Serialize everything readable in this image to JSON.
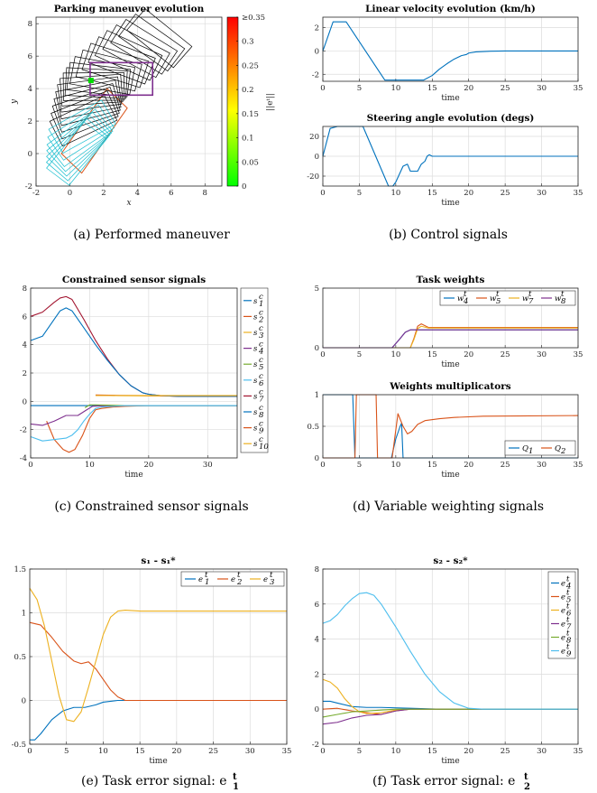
{
  "captions": {
    "a": "(a) Performed maneuver",
    "b": "(b) Control signals",
    "c": "(c) Constrained sensor signals",
    "d": "(d) Variable weighting signals",
    "e": "(e) Task error signal: e",
    "f": "(f) Task error signal: e"
  },
  "caption_marks": {
    "e_sup": "t",
    "e_sub": "1",
    "f_sup": "t",
    "f_sub": "2"
  },
  "colorbar": {
    "label": "||eᵗ||",
    "ticks": [
      "≥0.35",
      "0.3",
      "0.25",
      "0.2",
      "0.15",
      "0.1",
      "0.05",
      "0"
    ],
    "ticks_values": [
      0.35,
      0.3,
      0.25,
      0.2,
      0.15,
      0.1,
      0.05,
      0
    ],
    "colors": [
      "#00ff00",
      "#ffff00",
      "#ff8000",
      "#ff0000"
    ]
  },
  "chart_data": [
    {
      "id": "a",
      "type": "scatter",
      "title": "Parking maneuver evolution",
      "xlabel": "x",
      "ylabel": "y",
      "xlim": [
        -2,
        9
      ],
      "ylim": [
        -2,
        8.4
      ],
      "xticks": [
        -2,
        0,
        2,
        4,
        6,
        8
      ],
      "yticks": [
        -2,
        0,
        2,
        4,
        6,
        8
      ],
      "grid": true,
      "series": [
        {
          "values": [
            [
              5.3,
              7.1
            ],
            [
              3.4,
              6.0
            ],
            [
              1.8,
              4.7
            ],
            [
              1.2,
              3.8
            ],
            [
              0.9,
              2.5
            ],
            [
              0.6,
              1.0
            ],
            [
              0.4,
              0.0
            ]
          ]
        }
      ],
      "target_box": {
        "x": [
          1.2,
          4.9
        ],
        "y": [
          3.6,
          5.6
        ]
      },
      "parking_slot": {
        "corners": [
          [
            -0.5,
            0.0
          ],
          [
            0.7,
            -1.2
          ],
          [
            3.4,
            2.8
          ],
          [
            2.2,
            4.0
          ]
        ]
      }
    },
    {
      "id": "b1",
      "type": "line",
      "title": "Linear velocity evolution (km/h)",
      "xlabel": "time",
      "xlim": [
        0,
        35
      ],
      "ylim": [
        -2.6,
        2.9
      ],
      "xticks": [
        0,
        5,
        10,
        15,
        20,
        25,
        30,
        35
      ],
      "yticks": [
        -2,
        0,
        2
      ],
      "grid": true,
      "series": [
        {
          "color": "#0072bd",
          "x": [
            0,
            1.4,
            3.2,
            8.5,
            13.8,
            15,
            16,
            17,
            18,
            19,
            19.7,
            20,
            21,
            23,
            25,
            35
          ],
          "values": [
            0,
            2.5,
            2.5,
            -2.5,
            -2.5,
            -2.1,
            -1.55,
            -1.1,
            -0.7,
            -0.4,
            -0.3,
            -0.18,
            -0.08,
            -0.02,
            0,
            0
          ]
        }
      ]
    },
    {
      "id": "b2",
      "type": "line",
      "title": "Steering angle evolution (degs)",
      "xlabel": "time",
      "xlim": [
        0,
        35
      ],
      "ylim": [
        -30,
        30
      ],
      "xticks": [
        0,
        5,
        10,
        15,
        20,
        25,
        30,
        35
      ],
      "yticks": [
        -20,
        0,
        20
      ],
      "grid": true,
      "series": [
        {
          "color": "#0072bd",
          "x": [
            0,
            1,
            2,
            5.5,
            9,
            9.6,
            10,
            11,
            11.6,
            12,
            13,
            13.5,
            14,
            14.3,
            14.6,
            15,
            16,
            20,
            35
          ],
          "values": [
            0,
            28,
            30,
            30,
            -30,
            -30,
            -26,
            -10,
            -8,
            -15,
            -15,
            -8,
            -5,
            0,
            1.5,
            0,
            0,
            0,
            0
          ]
        }
      ]
    },
    {
      "id": "c",
      "type": "line",
      "title": "Constrained sensor signals",
      "xlabel": "time",
      "xlim": [
        0,
        35
      ],
      "ylim": [
        -4,
        8
      ],
      "xticks": [
        0,
        10,
        20,
        30
      ],
      "yticks": [
        -4,
        -2,
        0,
        2,
        4,
        6,
        8
      ],
      "grid": true,
      "legend_position": "right",
      "series": [
        {
          "name": "s",
          "sub": "1",
          "color": "#0072bd",
          "x": [
            0,
            11,
            13,
            15,
            20,
            25,
            35
          ],
          "values": [
            -0.3,
            -0.3,
            -0.3,
            -0.3,
            -0.3,
            -0.3,
            -0.3
          ]
        },
        {
          "name": "s",
          "sub": "2",
          "color": "#d95319",
          "x": [
            2.7,
            4,
            5.5,
            6.5,
            7.5,
            8.8,
            10,
            11,
            12,
            14,
            16,
            20,
            25,
            35
          ],
          "values": [
            -1.4,
            -2.7,
            -3.4,
            -3.6,
            -3.4,
            -2.4,
            -1.2,
            -0.6,
            -0.5,
            -0.4,
            -0.35,
            -0.3,
            -0.3,
            -0.3
          ]
        },
        {
          "name": "s",
          "sub": "3",
          "color": "#edb120",
          "x": [
            11,
            15,
            20,
            25,
            35
          ],
          "values": [
            0.42,
            0.4,
            0.38,
            0.37,
            0.37
          ]
        },
        {
          "name": "s",
          "sub": "4",
          "color": "#7e2f8e",
          "x": [
            0,
            2,
            4,
            6,
            8,
            9.5,
            10.5,
            12,
            14,
            16,
            20,
            25,
            35
          ],
          "values": [
            -1.6,
            -1.7,
            -1.4,
            -1.0,
            -1.0,
            -0.6,
            -0.35,
            -0.32,
            -0.3,
            -0.3,
            -0.3,
            -0.3,
            -0.3
          ]
        },
        {
          "name": "s",
          "sub": "5",
          "color": "#77ac30",
          "x": [
            9.2,
            10,
            11,
            13,
            16,
            20,
            25,
            35
          ],
          "values": [
            -0.45,
            -0.25,
            -0.25,
            -0.27,
            -0.3,
            -0.3,
            -0.3,
            -0.3
          ]
        },
        {
          "name": "s",
          "sub": "6",
          "color": "#4dbeee",
          "x": [
            0,
            2,
            3,
            6,
            7,
            8,
            9,
            10,
            11,
            12,
            14,
            16,
            20,
            35
          ],
          "values": [
            -2.5,
            -2.8,
            -2.75,
            -2.6,
            -2.4,
            -2.0,
            -1.4,
            -0.9,
            -0.5,
            -0.4,
            -0.35,
            -0.3,
            -0.3,
            -0.3
          ]
        },
        {
          "name": "s",
          "sub": "7",
          "color": "#a2142f",
          "x": [
            0,
            2,
            4,
            5,
            6,
            7,
            9,
            11,
            13,
            15,
            17,
            19,
            20,
            22,
            25,
            35
          ],
          "values": [
            6.0,
            6.3,
            7.0,
            7.3,
            7.4,
            7.2,
            5.8,
            4.3,
            3.0,
            1.9,
            1.1,
            0.6,
            0.5,
            0.4,
            0.35,
            0.35
          ]
        },
        {
          "name": "s",
          "sub": "8",
          "color": "#0072bd",
          "x": [
            0,
            2,
            4,
            5,
            6,
            7,
            9,
            11,
            13,
            15,
            17,
            19,
            20,
            22,
            25,
            35
          ],
          "values": [
            4.3,
            4.6,
            5.8,
            6.4,
            6.6,
            6.4,
            5.2,
            4.0,
            2.9,
            1.9,
            1.1,
            0.6,
            0.5,
            0.4,
            0.35,
            0.35
          ]
        },
        {
          "name": "s",
          "sub": "9",
          "color": "#d95319",
          "x": [
            11,
            15,
            20,
            25,
            35
          ],
          "values": [
            0.45,
            0.42,
            0.4,
            0.4,
            0.4
          ]
        },
        {
          "name": "s",
          "sub": "10",
          "color": "#edb120",
          "x": [
            11,
            35
          ],
          "values": [
            0.41,
            0.41
          ]
        }
      ]
    },
    {
      "id": "d1",
      "type": "line",
      "title": "Task weights",
      "xlabel": "time",
      "xlim": [
        0,
        35
      ],
      "ylim": [
        0,
        5
      ],
      "xticks": [
        0,
        5,
        10,
        15,
        20,
        25,
        30,
        35
      ],
      "yticks": [
        0,
        5
      ],
      "grid": true,
      "legend_position": "top-right",
      "series": [
        {
          "name": "w",
          "sub": "4",
          "color": "#0072bd",
          "x": [
            0,
            9.5,
            10.5,
            11.3,
            12,
            14,
            35
          ],
          "values": [
            0,
            0,
            0.7,
            1.3,
            1.5,
            1.5,
            1.5
          ]
        },
        {
          "name": "w",
          "sub": "5",
          "color": "#d95319",
          "x": [
            0,
            12,
            12.5,
            13,
            13.5,
            14.5,
            16,
            35
          ],
          "values": [
            0,
            0,
            0.8,
            1.8,
            2.0,
            1.7,
            1.7,
            1.7
          ]
        },
        {
          "name": "w",
          "sub": "7",
          "color": "#edb120",
          "x": [
            0,
            12,
            12.5,
            13,
            13.5,
            14.5,
            16,
            35
          ],
          "values": [
            0,
            0,
            0.7,
            1.6,
            1.8,
            1.65,
            1.65,
            1.65
          ]
        },
        {
          "name": "w",
          "sub": "8",
          "color": "#7e2f8e",
          "x": [
            0,
            9.5,
            10.5,
            11.3,
            12,
            14,
            35
          ],
          "values": [
            0,
            0,
            0.7,
            1.3,
            1.5,
            1.5,
            1.5
          ]
        }
      ]
    },
    {
      "id": "d2",
      "type": "line",
      "title": "Weights multiplicators",
      "xlabel": "time",
      "xlim": [
        0,
        35
      ],
      "ylim": [
        0,
        1
      ],
      "xticks": [
        0,
        5,
        10,
        15,
        20,
        25,
        30,
        35
      ],
      "yticks": [
        0,
        0.5,
        1
      ],
      "grid": true,
      "legend_position": "bottom-right",
      "series": [
        {
          "name": "Q",
          "sub": "1",
          "color": "#0072bd",
          "x": [
            0,
            4.1,
            4.4,
            4.7,
            9.4,
            10,
            10.6,
            10.8,
            11,
            35
          ],
          "values": [
            1,
            1,
            0,
            0,
            0,
            0.3,
            0.5,
            0.55,
            0,
            0
          ]
        },
        {
          "name": "Q",
          "sub": "2",
          "color": "#d95319",
          "x": [
            0,
            4.4,
            4.6,
            5.1,
            7.3,
            7.5,
            7.7,
            9.5,
            10.3,
            11,
            11.6,
            12.2,
            13,
            14,
            16,
            18,
            22,
            35
          ],
          "values": [
            0,
            0,
            1,
            1,
            1,
            0,
            0,
            0,
            0.7,
            0.5,
            0.38,
            0.42,
            0.53,
            0.59,
            0.62,
            0.64,
            0.66,
            0.67
          ]
        }
      ]
    },
    {
      "id": "e",
      "type": "line",
      "title": "s₁ - s₁*",
      "xlabel": "time",
      "xlim": [
        0,
        35
      ],
      "ylim": [
        -0.5,
        1.5
      ],
      "xticks": [
        0,
        5,
        10,
        15,
        20,
        25,
        30,
        35
      ],
      "yticks": [
        -0.5,
        0,
        0.5,
        1,
        1.5
      ],
      "grid": true,
      "legend_position": "top-right",
      "series": [
        {
          "name": "e",
          "sub": "1",
          "color": "#0072bd",
          "x": [
            0,
            0.7,
            1.5,
            3,
            4.5,
            6,
            7.5,
            9,
            10,
            12,
            14,
            35
          ],
          "values": [
            -0.45,
            -0.45,
            -0.38,
            -0.22,
            -0.12,
            -0.08,
            -0.08,
            -0.05,
            -0.02,
            0,
            0,
            0
          ]
        },
        {
          "name": "e",
          "sub": "2",
          "color": "#d95319",
          "x": [
            0,
            1.5,
            3,
            4.5,
            6,
            7,
            8,
            9,
            10,
            11,
            12,
            13,
            35
          ],
          "values": [
            0.89,
            0.86,
            0.72,
            0.56,
            0.45,
            0.42,
            0.44,
            0.36,
            0.24,
            0.12,
            0.04,
            0,
            0
          ]
        },
        {
          "name": "e",
          "sub": "3",
          "color": "#edb120",
          "x": [
            0,
            1,
            2,
            3,
            4,
            5,
            6,
            7,
            8,
            9,
            10,
            11,
            12,
            13,
            15,
            35
          ],
          "values": [
            1.28,
            1.15,
            0.85,
            0.45,
            0.05,
            -0.22,
            -0.24,
            -0.13,
            0.15,
            0.45,
            0.75,
            0.95,
            1.02,
            1.03,
            1.02,
            1.02
          ]
        }
      ]
    },
    {
      "id": "f",
      "type": "line",
      "title": "s₂ - s₂*",
      "xlabel": "time",
      "xlim": [
        0,
        35
      ],
      "ylim": [
        -2,
        8
      ],
      "xticks": [
        0,
        5,
        10,
        15,
        20,
        25,
        30,
        35
      ],
      "yticks": [
        -2,
        0,
        2,
        4,
        6,
        8
      ],
      "grid": true,
      "legend_position": "top-right",
      "series": [
        {
          "name": "e",
          "sub": "4",
          "color": "#0072bd",
          "x": [
            0,
            1,
            2,
            4,
            6,
            8,
            12,
            16,
            35
          ],
          "values": [
            0.45,
            0.45,
            0.35,
            0.15,
            0.1,
            0.1,
            0.05,
            0,
            0
          ]
        },
        {
          "name": "e",
          "sub": "5",
          "color": "#d95319",
          "x": [
            0,
            2,
            4,
            6,
            8,
            10,
            12,
            14,
            35
          ],
          "values": [
            0,
            0.05,
            -0.1,
            -0.2,
            -0.3,
            -0.1,
            0,
            0,
            0
          ]
        },
        {
          "name": "e",
          "sub": "6",
          "color": "#edb120",
          "x": [
            0,
            1,
            2,
            3,
            4,
            5,
            6,
            8,
            10,
            12,
            15,
            35
          ],
          "values": [
            1.7,
            1.55,
            1.2,
            0.6,
            0.15,
            -0.15,
            -0.25,
            -0.2,
            -0.05,
            0,
            0,
            0
          ]
        },
        {
          "name": "e",
          "sub": "7",
          "color": "#7e2f8e",
          "x": [
            0,
            2,
            4,
            6,
            8,
            10,
            12,
            14,
            35
          ],
          "values": [
            -0.85,
            -0.75,
            -0.5,
            -0.35,
            -0.3,
            -0.1,
            0,
            0,
            0
          ]
        },
        {
          "name": "e",
          "sub": "8",
          "color": "#77ac30",
          "x": [
            0,
            2,
            4,
            6,
            8,
            10,
            12,
            14,
            35
          ],
          "values": [
            -0.45,
            -0.3,
            -0.15,
            -0.1,
            -0.05,
            0,
            0,
            0,
            0
          ]
        },
        {
          "name": "e",
          "sub": "9",
          "color": "#4dbeee",
          "x": [
            0,
            1,
            2,
            3,
            4,
            5,
            6,
            7,
            8,
            10,
            12,
            14,
            16,
            18,
            20,
            22,
            35
          ],
          "values": [
            4.9,
            5.05,
            5.4,
            5.9,
            6.3,
            6.6,
            6.65,
            6.5,
            6.0,
            4.7,
            3.3,
            2.0,
            1.0,
            0.35,
            0.05,
            0,
            0
          ]
        }
      ]
    }
  ]
}
